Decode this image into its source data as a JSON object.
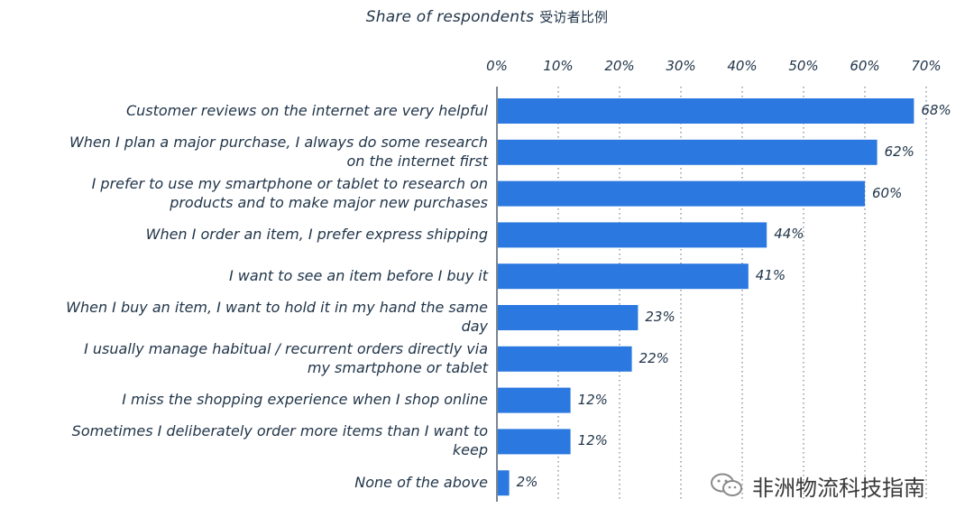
{
  "chart_data": {
    "type": "bar",
    "orientation": "horizontal",
    "title": "Share of respondents",
    "title_zh": "受访者比例",
    "xlim": [
      0,
      70
    ],
    "xticks": [
      "0%",
      "10%",
      "20%",
      "30%",
      "40%",
      "50%",
      "60%",
      "70%"
    ],
    "grid": "dotted vertical",
    "bar_color": "#2a78e0",
    "categories": [
      "Customer reviews on the internet are very helpful",
      "When I plan a major purchase, I always do some research on the internet first",
      "I prefer to use my smartphone or tablet to research on products and to make major new purchases",
      "When I order an item, I prefer express shipping",
      "I want to see an item before I buy it",
      "When I buy an item, I want to hold it in my hand the same day",
      "I usually manage habitual / recurrent orders directly via my smartphone or tablet",
      "I miss the shopping experience when I shop online",
      "Sometimes I deliberately order more items than I want to keep",
      "None of the above"
    ],
    "values": [
      68,
      62,
      60,
      44,
      41,
      23,
      22,
      12,
      12,
      2
    ],
    "value_labels": [
      "68%",
      "62%",
      "60%",
      "44%",
      "41%",
      "23%",
      "22%",
      "12%",
      "12%",
      "2%"
    ]
  },
  "watermark": {
    "text": "非洲物流科技指南",
    "icon": "wechat-icon"
  }
}
